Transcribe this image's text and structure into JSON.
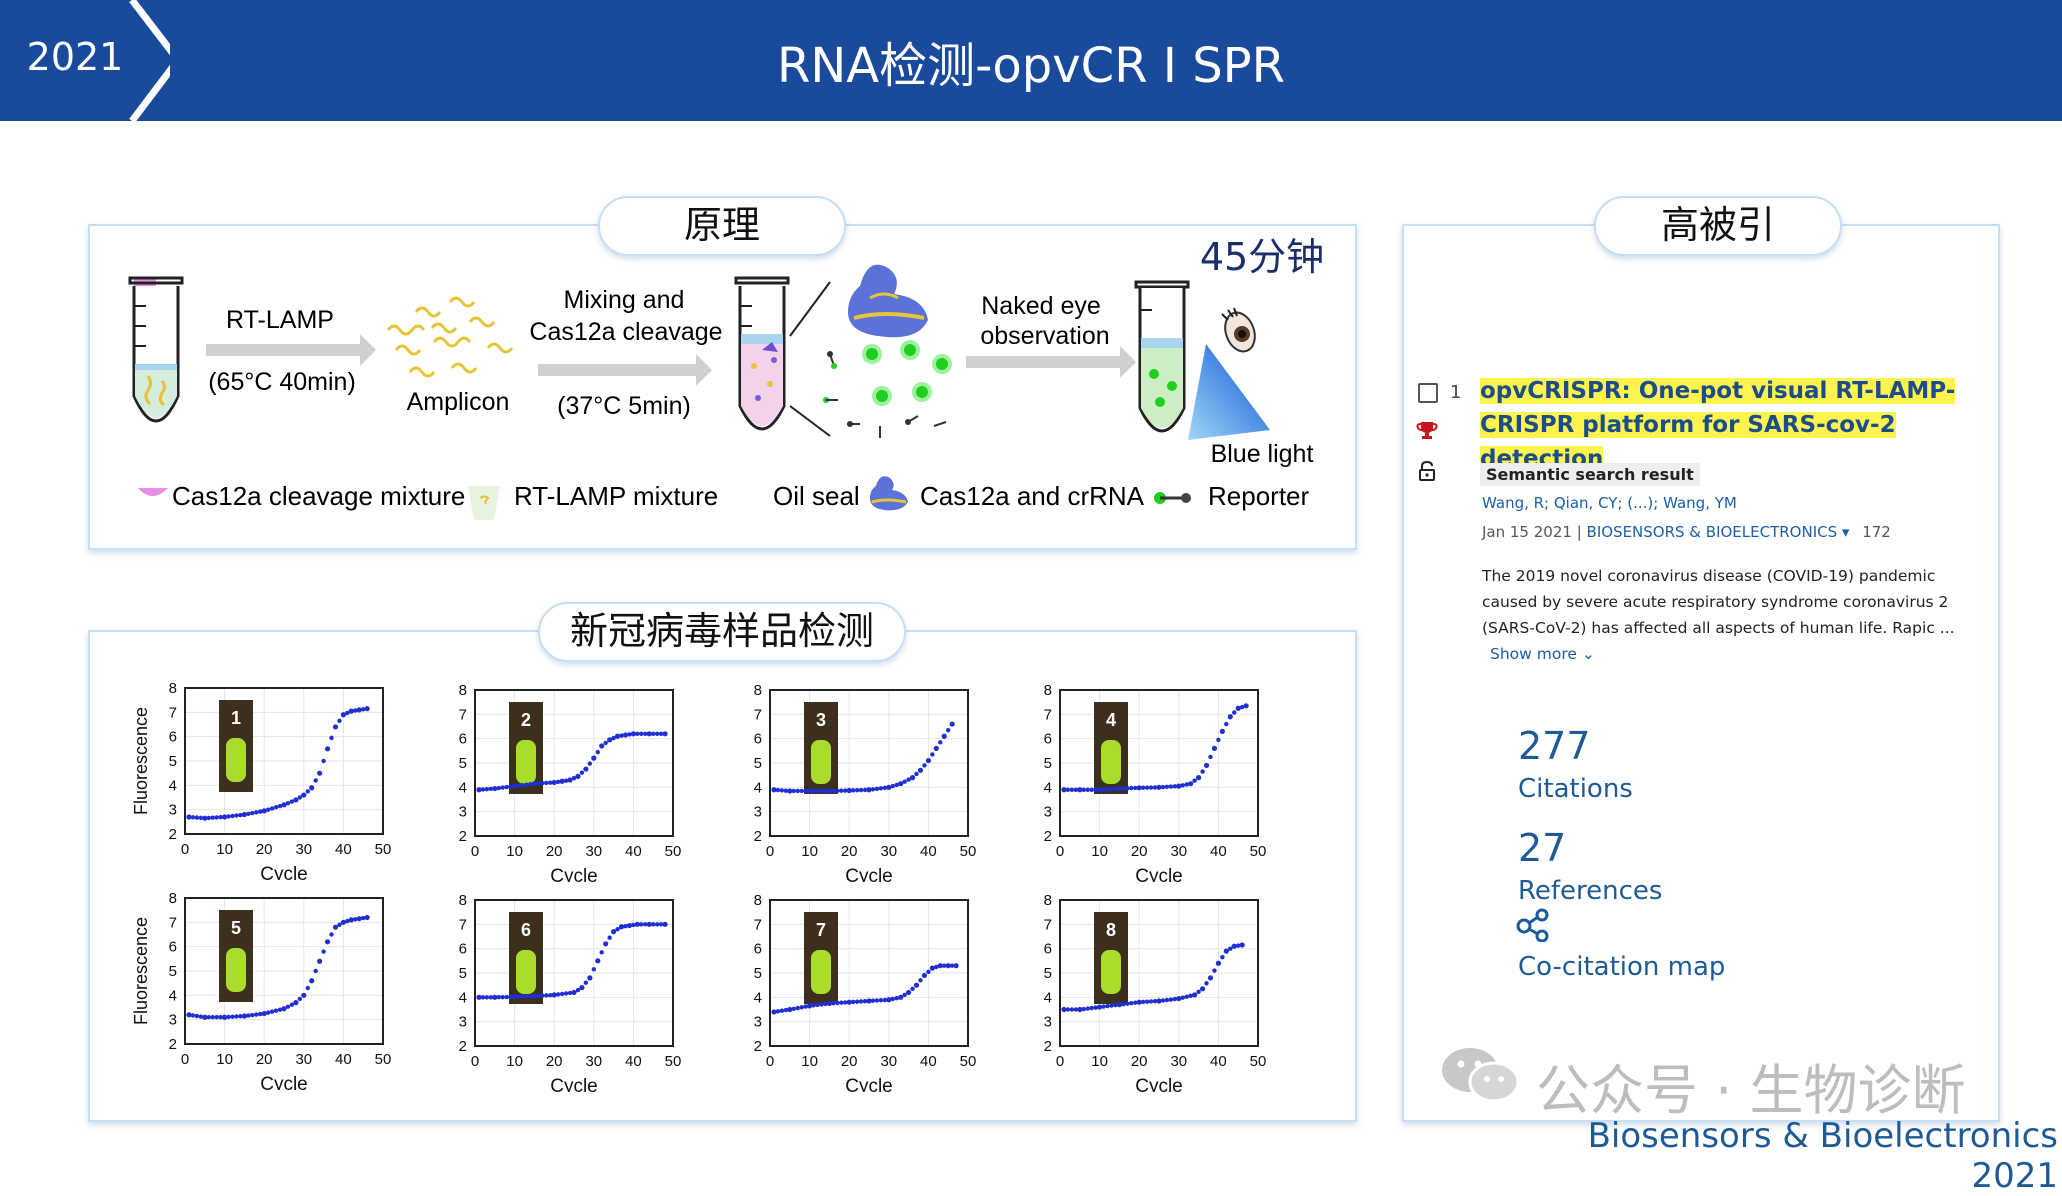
{
  "header": {
    "year": "2021",
    "title": "RNA检测-opvCR I SPR"
  },
  "principle": {
    "pill": "原理",
    "time": "45分钟",
    "step1_label": "RT-LAMP",
    "step1_condition": "(65°C 40min)",
    "amplicon": "Amplicon",
    "step2_label_1": "Mixing and",
    "step2_label_2": "Cas12a cleavage",
    "step2_condition": "(37°C 5min)",
    "step3_label_1": "Naked eye",
    "step3_label_2": "observation",
    "blue_light": "Blue light",
    "legend": {
      "cas12a_mixture": "Cas12a cleavage mixture",
      "rtlamp_mixture": "RT-LAMP mixture",
      "oil_seal": "Oil seal",
      "cas12a_crrna": "Cas12a and crRNA",
      "reporter": "Reporter"
    }
  },
  "samples": {
    "pill": "新冠病毒样品检测"
  },
  "citation_panel": {
    "pill": "高被引",
    "index": "1",
    "title": "opvCRISPR: One-pot visual RT-LAMP-CRISPR platform for SARS-cov-2 detection",
    "badge": "Semantic search result",
    "authors": "Wang, R; Qian, CY; (...); Wang, YM",
    "date": "Jan 15 2021 |",
    "journal": "BIOSENSORS & BIOELECTRONICS",
    "volume": "172",
    "abstract": "The 2019 novel coronavirus disease (COVID-19) pandemic caused by severe acute respiratory syndrome coronavirus 2 (SARS-CoV-2) has affected all aspects of human life. Rapic ...",
    "show_more": "Show more",
    "citations_count": "277",
    "citations_label": "Citations",
    "references_count": "27",
    "references_label": "References",
    "cocitation_label": "Co-citation map",
    "highlight_color": "#fff44f",
    "link_color": "#1e5a96"
  },
  "watermark": "公众号 · 生物诊断",
  "footer_source": "Biosensors & Bioelectronics 2021",
  "colors": {
    "header_bar": "#1a4a9c",
    "panel_border": "#c6dff3",
    "curve_dots": "#1f2fd0"
  },
  "chart_data": [
    {
      "type": "scatter",
      "sample": "1",
      "xlabel": "Cycle",
      "ylabel": "Fluorescence",
      "xlim": [
        0,
        50
      ],
      "ylim": [
        2,
        8
      ],
      "x": [
        1,
        5,
        10,
        15,
        20,
        25,
        28,
        30,
        32,
        34,
        36,
        38,
        40,
        42,
        44,
        46
      ],
      "y": [
        2.7,
        2.65,
        2.7,
        2.8,
        2.95,
        3.2,
        3.4,
        3.6,
        3.9,
        4.5,
        5.5,
        6.4,
        6.9,
        7.05,
        7.1,
        7.15
      ]
    },
    {
      "type": "scatter",
      "sample": "2",
      "xlabel": "Cycle",
      "ylabel": "",
      "xlim": [
        0,
        50
      ],
      "ylim": [
        2,
        8
      ],
      "x": [
        1,
        5,
        10,
        15,
        20,
        22,
        24,
        26,
        28,
        30,
        32,
        34,
        36,
        38,
        40,
        44,
        48
      ],
      "y": [
        3.9,
        3.95,
        4.05,
        4.15,
        4.2,
        4.25,
        4.3,
        4.45,
        4.75,
        5.2,
        5.7,
        5.95,
        6.1,
        6.15,
        6.2,
        6.2,
        6.2
      ]
    },
    {
      "type": "scatter",
      "sample": "3",
      "xlabel": "Cycle",
      "ylabel": "",
      "xlim": [
        0,
        50
      ],
      "ylim": [
        2,
        8
      ],
      "x": [
        1,
        5,
        10,
        15,
        20,
        25,
        30,
        33,
        36,
        38,
        40,
        42,
        44,
        46
      ],
      "y": [
        3.9,
        3.85,
        3.85,
        3.85,
        3.87,
        3.9,
        4.0,
        4.15,
        4.4,
        4.7,
        5.1,
        5.6,
        6.1,
        6.6
      ]
    },
    {
      "type": "scatter",
      "sample": "4",
      "xlabel": "Cycle",
      "ylabel": "",
      "xlim": [
        0,
        50
      ],
      "ylim": [
        2,
        8
      ],
      "x": [
        1,
        5,
        10,
        15,
        20,
        25,
        30,
        33,
        35,
        37,
        39,
        41,
        43,
        45,
        47
      ],
      "y": [
        3.9,
        3.9,
        3.9,
        3.95,
        3.98,
        4.0,
        4.05,
        4.15,
        4.4,
        4.9,
        5.6,
        6.3,
        6.9,
        7.25,
        7.35
      ]
    },
    {
      "type": "scatter",
      "sample": "5",
      "xlabel": "Cycle",
      "ylabel": "Fluorescence",
      "xlim": [
        0,
        50
      ],
      "ylim": [
        2,
        8
      ],
      "x": [
        1,
        5,
        10,
        15,
        20,
        25,
        28,
        30,
        32,
        34,
        36,
        38,
        40,
        42,
        44,
        46
      ],
      "y": [
        3.2,
        3.1,
        3.1,
        3.15,
        3.25,
        3.45,
        3.7,
        4.0,
        4.6,
        5.4,
        6.2,
        6.8,
        7.0,
        7.1,
        7.15,
        7.2
      ]
    },
    {
      "type": "scatter",
      "sample": "6",
      "xlabel": "Cycle",
      "ylabel": "",
      "xlim": [
        0,
        50
      ],
      "ylim": [
        2,
        8
      ],
      "x": [
        1,
        5,
        10,
        15,
        20,
        25,
        27,
        29,
        31,
        33,
        35,
        37,
        39,
        41,
        44,
        48
      ],
      "y": [
        4.0,
        4.0,
        4.02,
        4.05,
        4.1,
        4.2,
        4.4,
        4.8,
        5.5,
        6.2,
        6.7,
        6.9,
        6.95,
        7.0,
        7.0,
        7.0
      ]
    },
    {
      "type": "scatter",
      "sample": "7",
      "xlabel": "Cycle",
      "ylabel": "",
      "xlim": [
        0,
        50
      ],
      "ylim": [
        2,
        8
      ],
      "x": [
        1,
        5,
        10,
        15,
        20,
        25,
        30,
        33,
        35,
        37,
        39,
        41,
        43,
        45,
        47
      ],
      "y": [
        3.4,
        3.5,
        3.65,
        3.75,
        3.8,
        3.85,
        3.9,
        4.0,
        4.2,
        4.5,
        4.9,
        5.2,
        5.3,
        5.3,
        5.3
      ]
    },
    {
      "type": "scatter",
      "sample": "8",
      "xlabel": "Cycle",
      "ylabel": "",
      "xlim": [
        0,
        50
      ],
      "ylim": [
        2,
        8
      ],
      "x": [
        1,
        5,
        10,
        15,
        20,
        25,
        30,
        34,
        36,
        38,
        40,
        42,
        44,
        46
      ],
      "y": [
        3.5,
        3.5,
        3.6,
        3.7,
        3.8,
        3.85,
        3.95,
        4.1,
        4.35,
        4.8,
        5.4,
        5.9,
        6.1,
        6.15
      ]
    }
  ]
}
